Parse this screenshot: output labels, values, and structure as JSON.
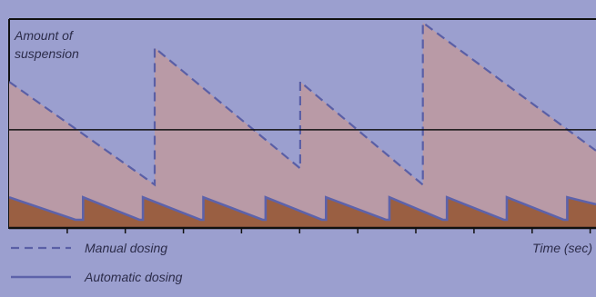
{
  "chart_data": {
    "type": "area",
    "ylabel_line1": "Amount of",
    "ylabel_line2": "suspension",
    "xlabel": "Time (sec)",
    "grid": false,
    "legend_position": "bottom-left",
    "ylim": [
      0,
      100
    ],
    "xlim": [
      0,
      100
    ],
    "threshold": 47,
    "colors": {
      "background": "#9b9fcf",
      "manual_fill": "#b99aa6",
      "manual_line": "#5a5fa6",
      "automatic_fill": "#9a5f42",
      "automatic_line": "#5d62aa",
      "axis": "#111111"
    },
    "series": [
      {
        "name": "Manual dosing",
        "style": "dashed",
        "points": [
          [
            0,
            0
          ],
          [
            0,
            70
          ],
          [
            24.8,
            20.7
          ],
          [
            24.8,
            86.2
          ],
          [
            49.6,
            28.5
          ],
          [
            49.6,
            70
          ],
          [
            70.5,
            20.7
          ],
          [
            70.5,
            98.3
          ],
          [
            100,
            37
          ]
        ]
      },
      {
        "name": "Automatic dosing",
        "style": "solid",
        "points": [
          [
            0,
            0
          ],
          [
            0,
            14.7
          ],
          [
            11.3,
            3.9
          ],
          [
            12.6,
            3.9
          ],
          [
            12.6,
            14.7
          ],
          [
            22.2,
            3.9
          ],
          [
            22.8,
            3.9
          ],
          [
            22.8,
            14.7
          ],
          [
            32.6,
            3.9
          ],
          [
            33.1,
            3.9
          ],
          [
            33.1,
            14.7
          ],
          [
            43.2,
            3.9
          ],
          [
            43.7,
            3.9
          ],
          [
            43.7,
            14.7
          ],
          [
            53.3,
            3.9
          ],
          [
            54,
            3.9
          ],
          [
            54,
            14.7
          ],
          [
            64.2,
            3.9
          ],
          [
            64.8,
            3.9
          ],
          [
            64.8,
            14.7
          ],
          [
            73.9,
            3.9
          ],
          [
            74.6,
            3.9
          ],
          [
            74.6,
            14.7
          ],
          [
            84.3,
            3.9
          ],
          [
            84.8,
            3.9
          ],
          [
            84.8,
            14.7
          ],
          [
            94.5,
            3.9
          ],
          [
            95.1,
            3.9
          ],
          [
            95.1,
            14.7
          ],
          [
            100,
            11.3
          ]
        ]
      }
    ]
  }
}
